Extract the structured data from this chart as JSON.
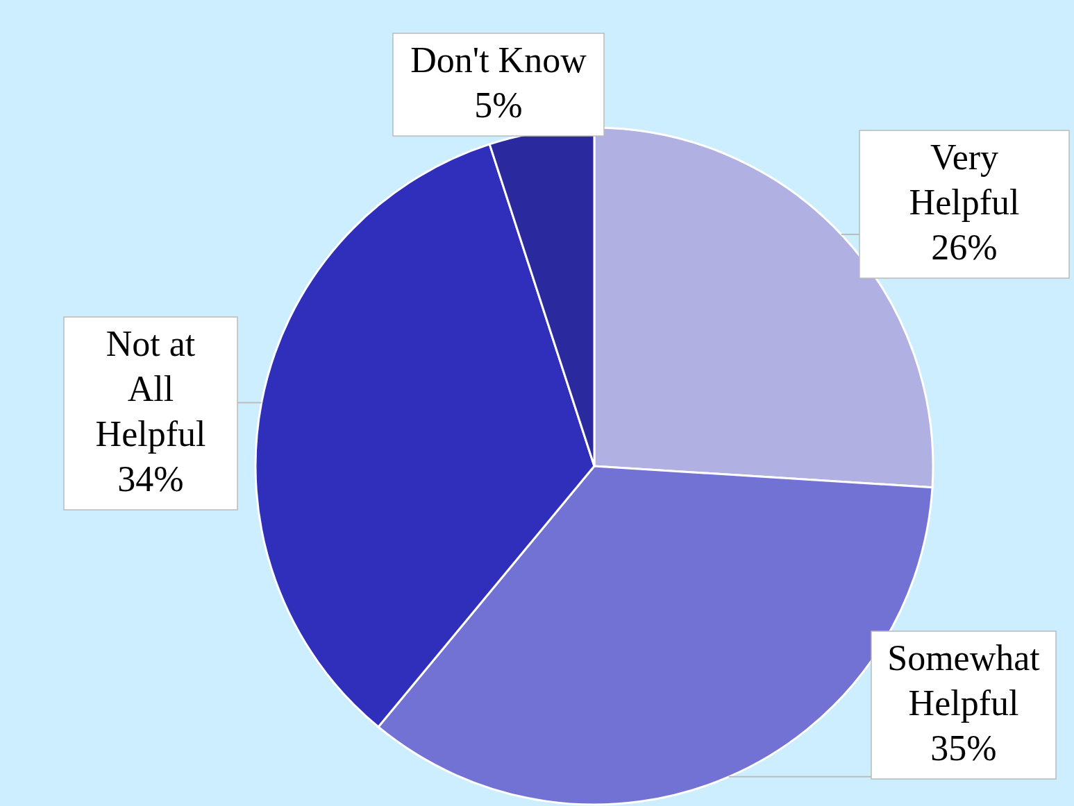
{
  "chart_data": {
    "type": "pie",
    "categories": [
      "Very Helpful",
      "Somewhat Helpful",
      "Not at All Helpful",
      "Don't Know"
    ],
    "values": [
      26,
      35,
      34,
      5
    ],
    "value_labels": [
      "26%",
      "35%",
      "34%",
      "5%"
    ],
    "colors": [
      "#b0b0e2",
      "#7272d4",
      "#2f2fbc",
      "#2a2a9e"
    ]
  }
}
